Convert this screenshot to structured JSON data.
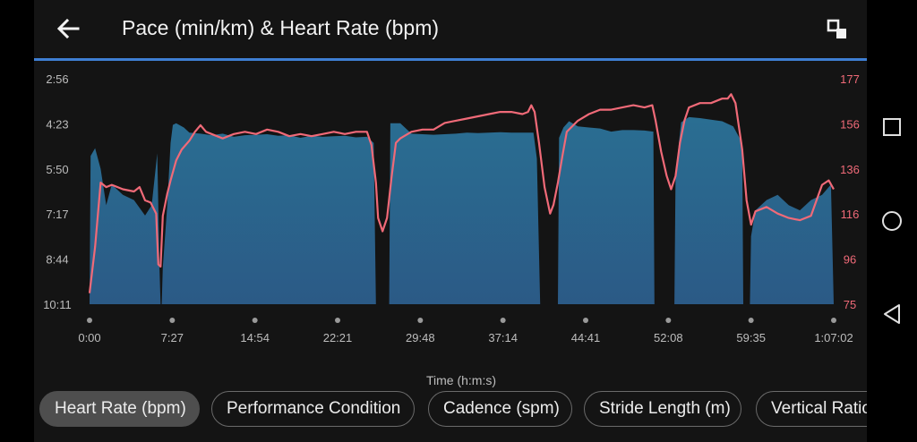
{
  "header": {
    "title": "Pace (min/km) & Heart Rate (bpm)",
    "back_icon": "arrow-left-icon",
    "fullscreen_icon": "fullscreen-exit-icon"
  },
  "colors": {
    "accent": "#3f7fd3",
    "heart_rate": "#f06a78",
    "pace_fill": "#2d6a8f"
  },
  "chart_data": {
    "type": "area",
    "xlabel": "Time (h:m:s)",
    "x_ticks": [
      "0:00",
      "7:27",
      "14:54",
      "22:21",
      "29:48",
      "37:14",
      "44:41",
      "52:08",
      "59:35",
      "1:07:02"
    ],
    "y_left_ticks": [
      "2:56",
      "4:23",
      "5:50",
      "7:17",
      "8:44",
      "10:11"
    ],
    "y_right_ticks": [
      "177",
      "156",
      "136",
      "116",
      "96",
      "75"
    ],
    "x_range_min": [
      0,
      67.05
    ],
    "pace_ylim_sec": [
      176,
      611
    ],
    "hr_ylim": [
      75,
      177
    ],
    "series": [
      {
        "name": "",
        "axis": "left",
        "unit": "min/km",
        "points": [
          [
            0.0,
            611
          ],
          [
            0.1,
            325
          ],
          [
            0.5,
            310
          ],
          [
            1.0,
            350
          ],
          [
            1.5,
            420
          ],
          [
            2.0,
            380
          ],
          [
            3.0,
            400
          ],
          [
            4.0,
            410
          ],
          [
            5.0,
            440
          ],
          [
            5.6,
            420
          ],
          [
            6.1,
            320
          ],
          [
            6.3,
            540
          ],
          [
            6.4,
            611
          ],
          [
            6.5,
            611
          ],
          [
            6.6,
            540
          ],
          [
            7.0,
            420
          ],
          [
            7.3,
            300
          ],
          [
            7.5,
            265
          ],
          [
            7.8,
            262
          ],
          [
            8.5,
            270
          ],
          [
            9.0,
            280
          ],
          [
            10.0,
            282
          ],
          [
            11.0,
            285
          ],
          [
            12.0,
            282
          ],
          [
            13.0,
            288
          ],
          [
            14.0,
            285
          ],
          [
            15.0,
            284
          ],
          [
            16.0,
            283
          ],
          [
            17.0,
            286
          ],
          [
            18.0,
            285
          ],
          [
            19.0,
            290
          ],
          [
            20.0,
            286
          ],
          [
            21.0,
            288
          ],
          [
            22.0,
            287
          ],
          [
            23.0,
            286
          ],
          [
            24.0,
            289
          ],
          [
            25.0,
            288
          ],
          [
            25.6,
            300
          ],
          [
            25.8,
            611
          ],
          [
            27.0,
            611
          ],
          [
            27.1,
            262
          ],
          [
            28.0,
            262
          ],
          [
            29.0,
            282
          ],
          [
            30.0,
            283
          ],
          [
            31.0,
            284
          ],
          [
            32.0,
            283
          ],
          [
            33.0,
            282
          ],
          [
            34.0,
            280
          ],
          [
            35.0,
            281
          ],
          [
            36.0,
            280
          ],
          [
            37.0,
            279
          ],
          [
            38.0,
            280
          ],
          [
            39.0,
            280
          ],
          [
            40.0,
            280
          ],
          [
            40.3,
            330
          ],
          [
            40.6,
            611
          ],
          [
            42.2,
            611
          ],
          [
            42.3,
            290
          ],
          [
            42.7,
            270
          ],
          [
            43.2,
            258
          ],
          [
            44.0,
            268
          ],
          [
            45.0,
            270
          ],
          [
            46.0,
            272
          ],
          [
            47.0,
            278
          ],
          [
            48.0,
            275
          ],
          [
            49.0,
            275
          ],
          [
            50.0,
            276
          ],
          [
            50.8,
            278
          ],
          [
            50.9,
            611
          ],
          [
            52.7,
            611
          ],
          [
            52.8,
            360
          ],
          [
            53.3,
            260
          ],
          [
            54.0,
            250
          ],
          [
            55.0,
            252
          ],
          [
            56.0,
            255
          ],
          [
            57.0,
            258
          ],
          [
            58.0,
            268
          ],
          [
            58.8,
            300
          ],
          [
            58.9,
            611
          ],
          [
            59.5,
            611
          ],
          [
            59.6,
            480
          ],
          [
            60.0,
            430
          ],
          [
            61.0,
            410
          ],
          [
            62.0,
            400
          ],
          [
            63.0,
            420
          ],
          [
            64.0,
            430
          ],
          [
            65.0,
            410
          ],
          [
            66.0,
            400
          ],
          [
            66.8,
            380
          ],
          [
            67.05,
            611
          ]
        ]
      },
      {
        "name": "",
        "axis": "right",
        "unit": "bpm",
        "points": [
          [
            0.0,
            80
          ],
          [
            0.5,
            101
          ],
          [
            1.0,
            130
          ],
          [
            1.5,
            128
          ],
          [
            2.0,
            129
          ],
          [
            3.0,
            127
          ],
          [
            4.0,
            126
          ],
          [
            4.5,
            128
          ],
          [
            5.0,
            122
          ],
          [
            5.5,
            121
          ],
          [
            6.0,
            116
          ],
          [
            6.2,
            93
          ],
          [
            6.4,
            92
          ],
          [
            6.6,
            115
          ],
          [
            7.0,
            125
          ],
          [
            7.3,
            131
          ],
          [
            7.8,
            140
          ],
          [
            8.3,
            145
          ],
          [
            9.0,
            149
          ],
          [
            9.5,
            153
          ],
          [
            10.0,
            156
          ],
          [
            10.5,
            153
          ],
          [
            11.0,
            152
          ],
          [
            12.0,
            150
          ],
          [
            13.0,
            152
          ],
          [
            14.0,
            153
          ],
          [
            15.0,
            152
          ],
          [
            16.0,
            154
          ],
          [
            17.0,
            153
          ],
          [
            18.0,
            151
          ],
          [
            19.0,
            152
          ],
          [
            20.0,
            151
          ],
          [
            21.0,
            152
          ],
          [
            22.0,
            153
          ],
          [
            23.0,
            152
          ],
          [
            24.0,
            153
          ],
          [
            25.0,
            153
          ],
          [
            25.4,
            147
          ],
          [
            25.8,
            130
          ],
          [
            26.0,
            114
          ],
          [
            26.4,
            108
          ],
          [
            26.8,
            114
          ],
          [
            27.2,
            132
          ],
          [
            27.6,
            148
          ],
          [
            28.0,
            150
          ],
          [
            29.0,
            153
          ],
          [
            30.0,
            154
          ],
          [
            31.0,
            154
          ],
          [
            32.0,
            157
          ],
          [
            33.0,
            158
          ],
          [
            34.0,
            159
          ],
          [
            35.0,
            160
          ],
          [
            36.0,
            161
          ],
          [
            37.0,
            162
          ],
          [
            38.0,
            162
          ],
          [
            39.0,
            161
          ],
          [
            39.5,
            162
          ],
          [
            39.8,
            165
          ],
          [
            40.1,
            162
          ],
          [
            40.5,
            148
          ],
          [
            41.0,
            128
          ],
          [
            41.5,
            116
          ],
          [
            41.8,
            120
          ],
          [
            42.2,
            130
          ],
          [
            42.6,
            142
          ],
          [
            43.0,
            153
          ],
          [
            44.0,
            158
          ],
          [
            45.0,
            161
          ],
          [
            46.0,
            163
          ],
          [
            47.0,
            163
          ],
          [
            48.0,
            164
          ],
          [
            49.0,
            165
          ],
          [
            50.0,
            164
          ],
          [
            50.7,
            165
          ],
          [
            51.0,
            158
          ],
          [
            51.5,
            144
          ],
          [
            52.0,
            133
          ],
          [
            52.4,
            127
          ],
          [
            52.8,
            133
          ],
          [
            53.2,
            148
          ],
          [
            53.6,
            158
          ],
          [
            54.0,
            164
          ],
          [
            55.0,
            166
          ],
          [
            56.0,
            166
          ],
          [
            57.0,
            168
          ],
          [
            57.5,
            168
          ],
          [
            57.8,
            170
          ],
          [
            58.2,
            166
          ],
          [
            58.8,
            145
          ],
          [
            59.2,
            122
          ],
          [
            59.6,
            111
          ],
          [
            60.0,
            117
          ],
          [
            61.0,
            119
          ],
          [
            62.0,
            116
          ],
          [
            63.0,
            114
          ],
          [
            64.0,
            113
          ],
          [
            65.0,
            115
          ],
          [
            65.5,
            122
          ],
          [
            66.0,
            129
          ],
          [
            66.6,
            131
          ],
          [
            67.05,
            127
          ]
        ]
      }
    ]
  },
  "chips": [
    {
      "label": "Heart Rate (bpm)",
      "active": true
    },
    {
      "label": "Performance Condition",
      "active": false
    },
    {
      "label": "Cadence (spm)",
      "active": false
    },
    {
      "label": "Stride Length (m)",
      "active": false
    },
    {
      "label": "Vertical Ratio",
      "active": false
    }
  ],
  "navbar": {
    "recents_icon": "square-recents-icon",
    "home_icon": "circle-home-icon",
    "back_icon": "triangle-back-icon"
  }
}
